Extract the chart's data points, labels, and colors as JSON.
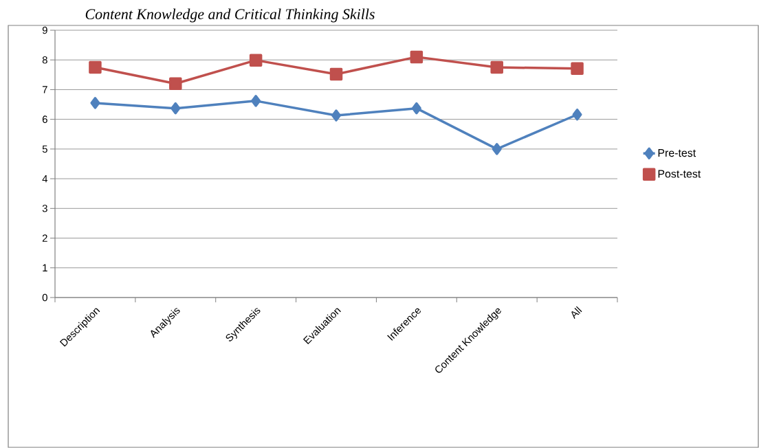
{
  "chart_data": {
    "type": "line",
    "title": "Content Knowledge and Critical Thinking Skills",
    "categories": [
      "Description",
      "Analysis",
      "Synthesis",
      "Evaluation",
      "Inference",
      "Content Knowledge",
      "All"
    ],
    "series": [
      {
        "name": "Pre-test",
        "color": "#4f81bd",
        "marker": "diamond",
        "values": [
          6.55,
          6.37,
          6.62,
          6.13,
          6.37,
          5.0,
          6.16
        ]
      },
      {
        "name": "Post-test",
        "color": "#c0504d",
        "marker": "square",
        "values": [
          7.75,
          7.2,
          7.99,
          7.52,
          8.1,
          7.75,
          7.71
        ]
      }
    ],
    "ylim": [
      0,
      9
    ],
    "yticks": [
      0,
      1,
      2,
      3,
      4,
      5,
      6,
      7,
      8,
      9
    ],
    "grid": "y",
    "legend": "right"
  }
}
